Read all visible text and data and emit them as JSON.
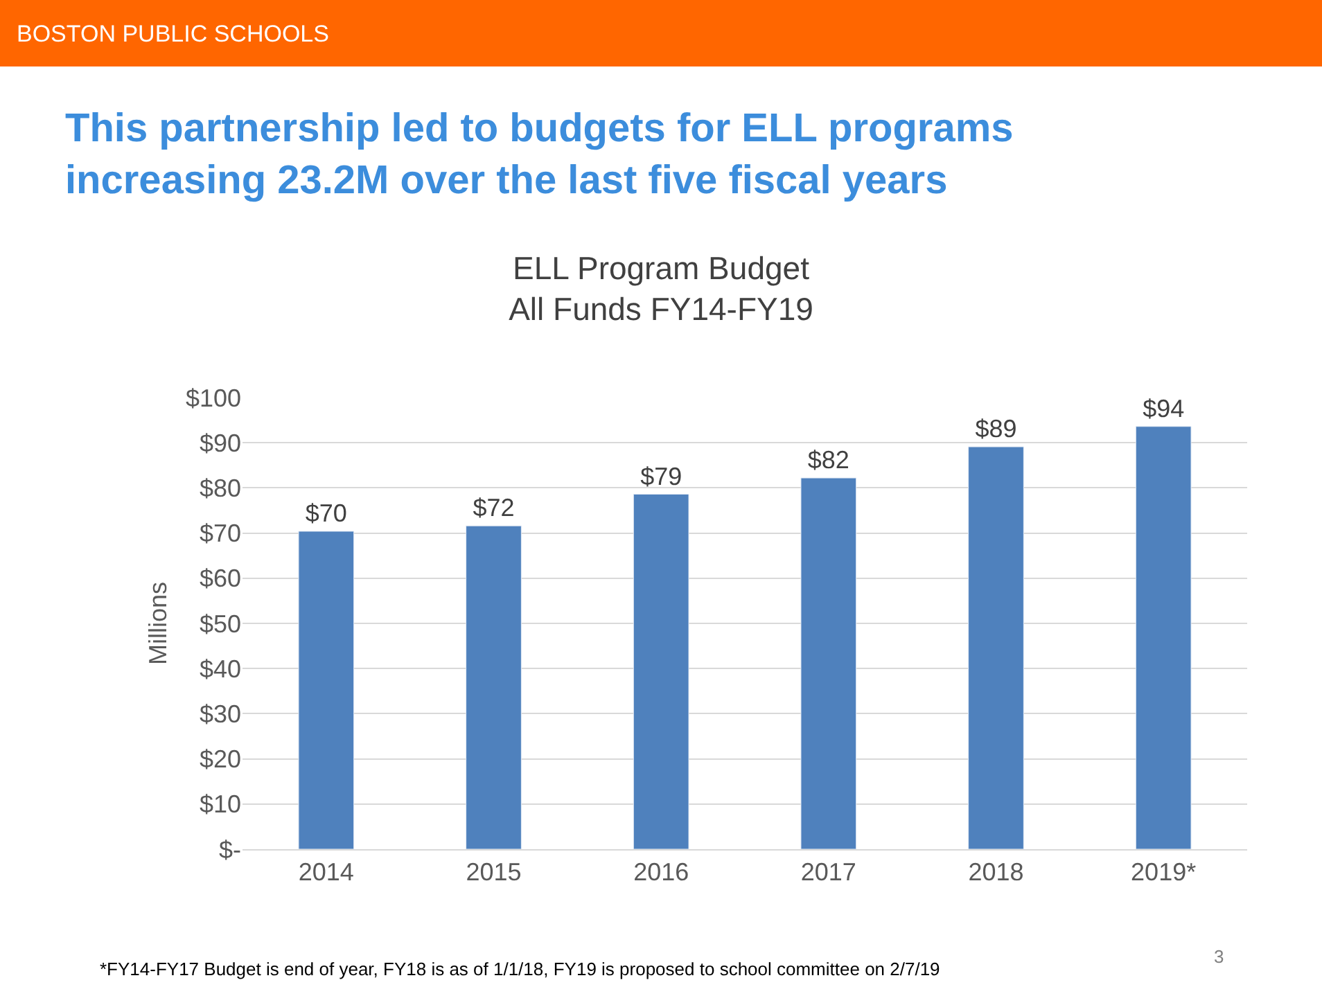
{
  "chart_data": {
    "type": "bar",
    "title": "ELL Program Budget\nAll Funds FY14-FY19",
    "ylabel": "Millions",
    "categories": [
      "2014",
      "2015",
      "2016",
      "2017",
      "2018",
      "2019*"
    ],
    "values": [
      70.4,
      71.6,
      78.6,
      82.2,
      89.1,
      93.6
    ],
    "value_labels": [
      "$70",
      "$72",
      "$79",
      "$82",
      "$89",
      "$94"
    ],
    "color": "#4f81bd",
    "ylim": [
      0,
      100
    ],
    "yticks": [
      {
        "value": 0,
        "label": "$-"
      },
      {
        "value": 10,
        "label": "$10"
      },
      {
        "value": 20,
        "label": "$20"
      },
      {
        "value": 30,
        "label": "$30"
      },
      {
        "value": 40,
        "label": "$40"
      },
      {
        "value": 50,
        "label": "$50"
      },
      {
        "value": 60,
        "label": "$60"
      },
      {
        "value": 70,
        "label": "$70"
      },
      {
        "value": 80,
        "label": "$80"
      },
      {
        "value": 90,
        "label": "$90"
      },
      {
        "value": 100,
        "label": "$100"
      }
    ],
    "grid": "y",
    "annotations": [
      "BOSTON PUBLIC SCHOOLS",
      "This partnership led to budgets for ELL programs\nincreasing 23.2M over the last five fiscal years",
      "*FY14-FY17 Budget is end of year, FY18 is as of 1/1/18, FY19 is proposed to school committee on 2/7/19",
      "3"
    ]
  }
}
